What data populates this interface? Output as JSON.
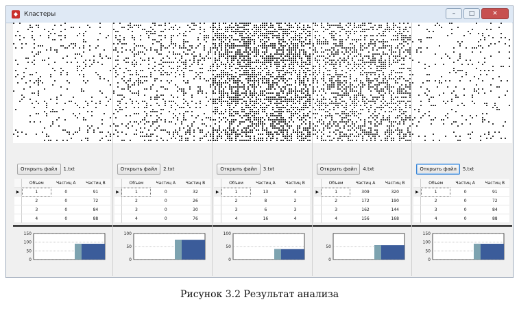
{
  "window": {
    "title": "Кластеры",
    "controls": {
      "minimize": "–",
      "maximize": "□",
      "close": "✕"
    }
  },
  "columns": [
    "Объем",
    "Частиц A",
    "Частиц B"
  ],
  "open_button_label": "Открыть файл",
  "panels": [
    {
      "file": "1.txt",
      "density": 0.12,
      "rows": [
        [
          "1",
          "0",
          "91"
        ],
        [
          "2",
          "0",
          "72"
        ],
        [
          "3",
          "0",
          "84"
        ],
        [
          "4",
          "0",
          "88"
        ]
      ],
      "chart_data": {
        "type": "bar",
        "yticks": [
          0,
          50,
          100,
          150
        ],
        "ylim": [
          0,
          150
        ],
        "values": [
          91
        ],
        "series_colors": [
          "#3b5c9a"
        ]
      }
    },
    {
      "file": "2.txt",
      "density": 0.25,
      "rows": [
        [
          "1",
          "0",
          "32"
        ],
        [
          "2",
          "0",
          "26"
        ],
        [
          "3",
          "0",
          "30"
        ],
        [
          "4",
          "0",
          "76"
        ]
      ],
      "chart_data": {
        "type": "bar",
        "yticks": [
          0,
          50,
          100
        ],
        "ylim": [
          0,
          100
        ],
        "values": [
          76
        ],
        "series_colors": [
          "#3b5c9a"
        ]
      }
    },
    {
      "file": "3.txt",
      "density": 0.55,
      "rows": [
        [
          "1",
          "13",
          "4"
        ],
        [
          "2",
          "8",
          "2"
        ],
        [
          "3",
          "6",
          "3"
        ],
        [
          "4",
          "16",
          "4"
        ]
      ],
      "chart_data": {
        "type": "bar",
        "yticks": [
          0,
          50,
          100
        ],
        "ylim": [
          0,
          100
        ],
        "values": [
          40
        ],
        "series_colors": [
          "#3b5c9a"
        ]
      }
    },
    {
      "file": "4.txt",
      "density": 0.45,
      "rows": [
        [
          "1",
          "309",
          "320"
        ],
        [
          "2",
          "172",
          "190"
        ],
        [
          "3",
          "162",
          "144"
        ],
        [
          "4",
          "156",
          "168"
        ]
      ],
      "chart_data": {
        "type": "bar",
        "yticks": [
          0,
          50
        ],
        "ylim": [
          0,
          100
        ],
        "values": [
          55
        ],
        "series_colors": [
          "#3b5c9a"
        ]
      }
    },
    {
      "file": "5.txt",
      "density": 0.1,
      "rows": [
        [
          "1",
          "0",
          "91"
        ],
        [
          "2",
          "0",
          "72"
        ],
        [
          "3",
          "0",
          "84"
        ],
        [
          "4",
          "0",
          "88"
        ]
      ],
      "chart_data": {
        "type": "bar",
        "yticks": [
          0,
          50,
          100,
          150
        ],
        "ylim": [
          0,
          150
        ],
        "values": [
          91
        ],
        "series_colors": [
          "#3b5c9a"
        ]
      }
    }
  ],
  "active_open_button_index": 4,
  "caption": "Рисунок 3.2 Результат анализа"
}
